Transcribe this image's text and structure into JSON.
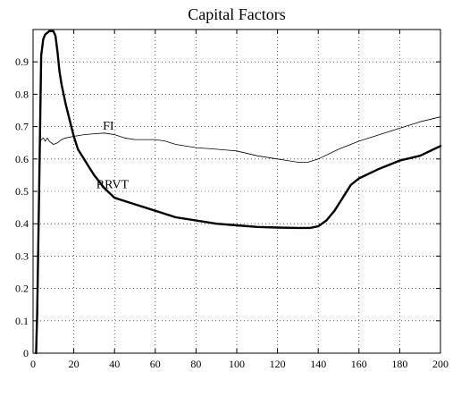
{
  "chart_data": {
    "type": "line",
    "title": "Capital Factors",
    "xlabel": "",
    "ylabel": "",
    "xlim": [
      0,
      200
    ],
    "ylim": [
      0,
      1.0
    ],
    "grid": true,
    "x_ticks": [
      "0",
      "20",
      "40",
      "60",
      "80",
      "100",
      "120",
      "140",
      "160",
      "180",
      "200"
    ],
    "y_ticks": [
      "0",
      "0.1",
      "0.2",
      "0.3",
      "0.4",
      "0.5",
      "0.6",
      "0.7",
      "0.8",
      "0.9"
    ],
    "series": [
      {
        "name": "FI",
        "color": "#000000",
        "width": 0.8,
        "x": [
          3,
          4,
          5,
          6,
          7,
          8,
          10,
          12,
          14,
          16,
          20,
          25,
          30,
          35,
          40,
          45,
          50,
          55,
          60,
          65,
          70,
          80,
          90,
          100,
          110,
          120,
          125,
          130,
          135,
          140,
          150,
          160,
          170,
          180,
          190,
          200
        ],
        "y": [
          0.63,
          0.66,
          0.665,
          0.655,
          0.665,
          0.655,
          0.645,
          0.65,
          0.66,
          0.665,
          0.67,
          0.675,
          0.678,
          0.68,
          0.675,
          0.665,
          0.66,
          0.66,
          0.66,
          0.655,
          0.645,
          0.635,
          0.63,
          0.625,
          0.61,
          0.6,
          0.595,
          0.59,
          0.59,
          0.6,
          0.63,
          0.655,
          0.675,
          0.695,
          0.715,
          0.73
        ]
      },
      {
        "name": "RRVT",
        "color": "#000000",
        "width": 2.4,
        "x": [
          1.5,
          2,
          3,
          4,
          5,
          6,
          8,
          10,
          11,
          12,
          13,
          14,
          16,
          18,
          20,
          22,
          25,
          28,
          30,
          35,
          40,
          45,
          50,
          60,
          70,
          80,
          90,
          100,
          110,
          120,
          130,
          136,
          140,
          144,
          148,
          152,
          156,
          160,
          170,
          180,
          190,
          200
        ],
        "y": [
          0.0,
          0.12,
          0.5,
          0.92,
          0.97,
          0.985,
          0.995,
          0.995,
          0.98,
          0.93,
          0.87,
          0.83,
          0.77,
          0.72,
          0.67,
          0.63,
          0.6,
          0.57,
          0.55,
          0.51,
          0.48,
          0.47,
          0.46,
          0.44,
          0.42,
          0.41,
          0.4,
          0.395,
          0.39,
          0.388,
          0.387,
          0.387,
          0.392,
          0.41,
          0.44,
          0.48,
          0.52,
          0.54,
          0.57,
          0.595,
          0.61,
          0.64
        ]
      }
    ],
    "annotations": [
      {
        "text": "FI",
        "x": 37,
        "y": 0.69
      },
      {
        "text": "RRVT",
        "x": 39,
        "y": 0.51
      }
    ]
  }
}
